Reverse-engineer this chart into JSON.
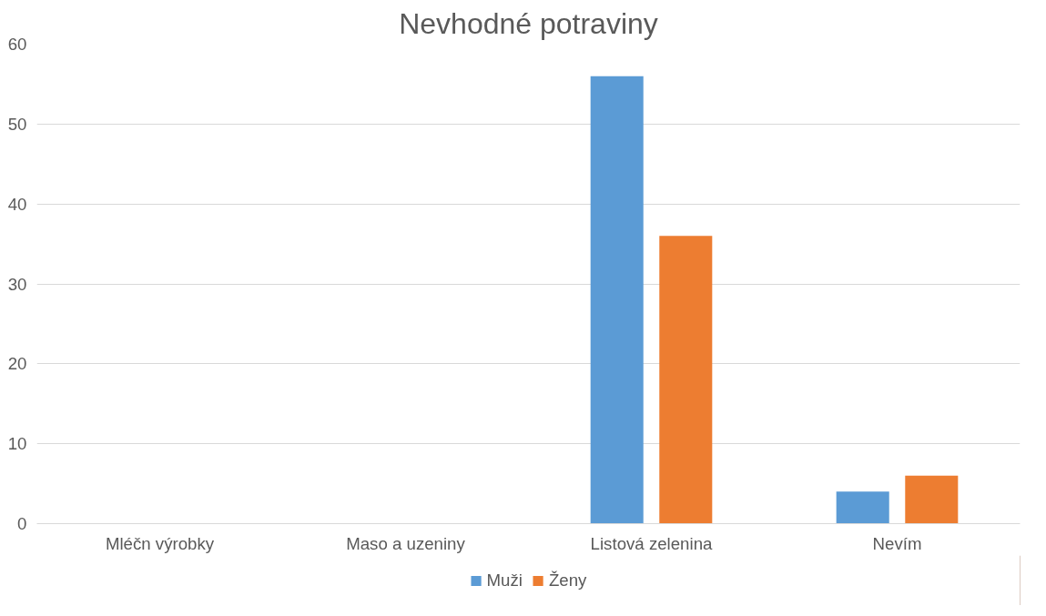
{
  "chart_data": {
    "type": "bar",
    "title": "Nevhodné potraviny",
    "categories": [
      "Mléčn výrobky",
      "Maso a uzeniny",
      "Listová zelenina",
      "Nevím"
    ],
    "series": [
      {
        "name": "Muži",
        "color": "#5b9bd5",
        "values": [
          0,
          0,
          56,
          4
        ]
      },
      {
        "name": "Ženy",
        "color": "#ed7d31",
        "values": [
          0,
          0,
          36,
          6
        ]
      }
    ],
    "ylim": [
      0,
      60
    ],
    "yticks": [
      0,
      10,
      20,
      30,
      40,
      50,
      60
    ],
    "grid": "y",
    "legend": "bottom"
  }
}
